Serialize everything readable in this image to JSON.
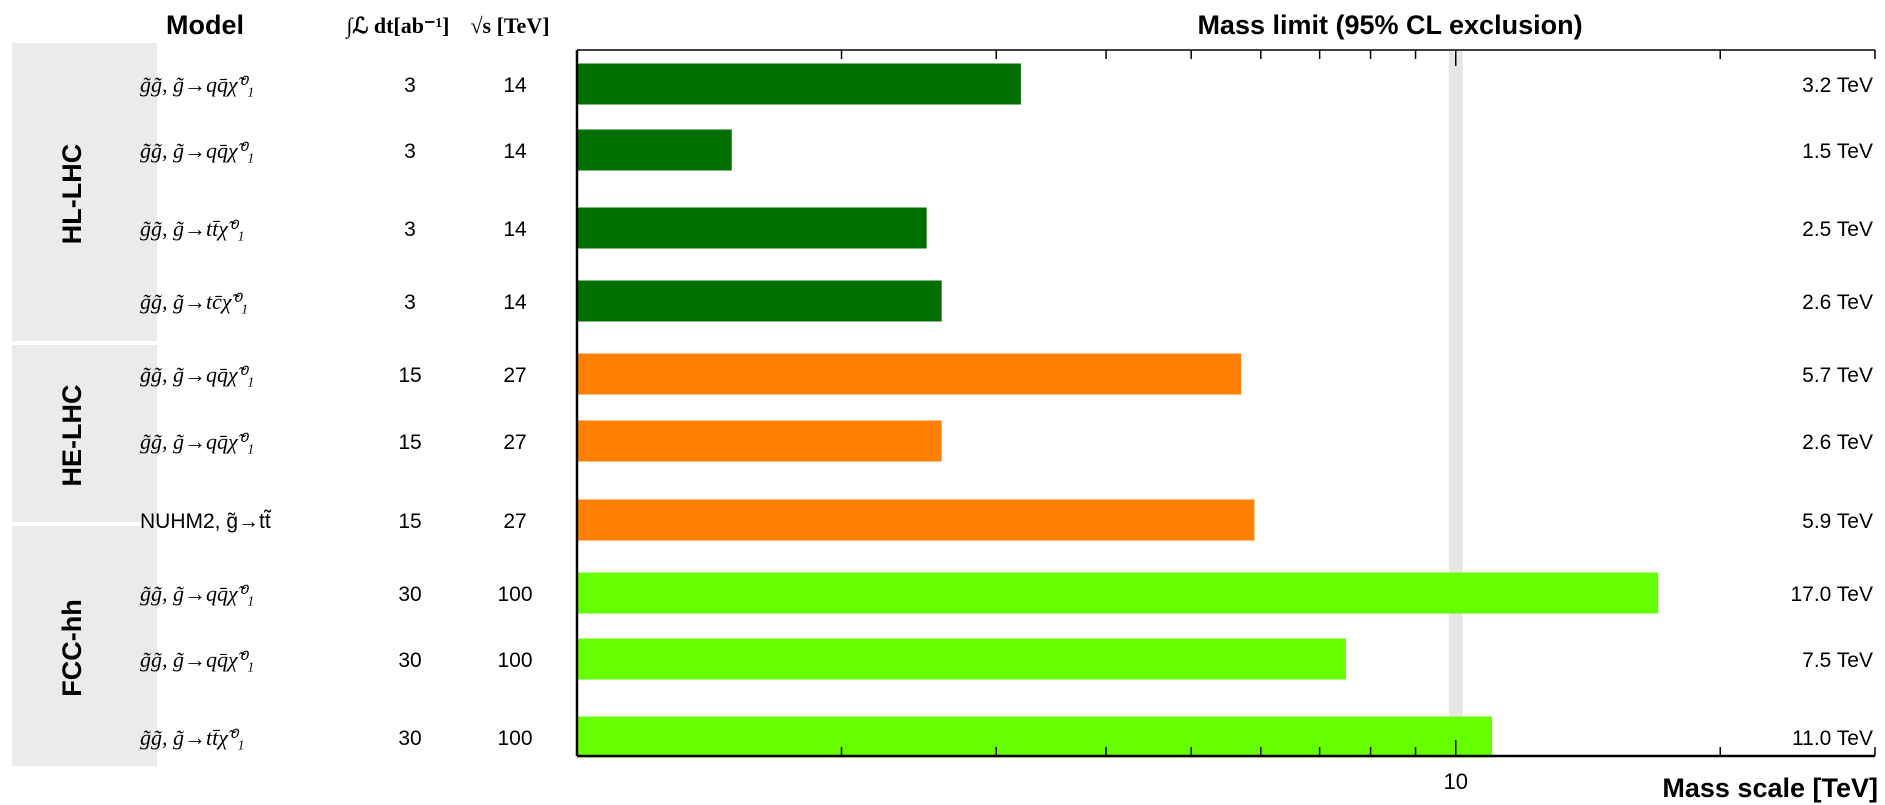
{
  "header": {
    "model": "Model",
    "lumi": "∫ℒ dt[ab⁻¹]",
    "sqrts": "√s [TeV]",
    "title": "Mass limit (95% CL exclusion)"
  },
  "groups": [
    {
      "label": "HL-LHC",
      "color": "#006f00"
    },
    {
      "label": "HE-LHC",
      "color": "#ff7f00"
    },
    {
      "label": "FCC-hh",
      "color": "#66ff00"
    }
  ],
  "colors": {
    "hl_lhc": "#006f00",
    "he_lhc": "#ff7f00",
    "fcc_hh": "#66ff00",
    "group_band": "#ebebeb",
    "ref_band": "#e6e6e6"
  },
  "chart_data": {
    "type": "bar",
    "orientation": "horizontal",
    "title": "Mass limit (95% CL exclusion)",
    "xlabel": "Mass scale [TeV]",
    "xscale": "log",
    "xlim": [
      1,
      30
    ],
    "xticklabels": [
      "10"
    ],
    "reference_band": 10,
    "rows": [
      {
        "group": "HL-LHC",
        "model": "g̃g̃, g̃→qq̄χ̃⁰₁",
        "lumi": "3",
        "sqrts": "14",
        "value": 3.2,
        "label": "3.2 TeV"
      },
      {
        "group": "HL-LHC",
        "model": "g̃g̃, g̃→qq̄χ̃⁰₁",
        "lumi": "3",
        "sqrts": "14",
        "value": 1.5,
        "label": "1.5 TeV"
      },
      {
        "group": "HL-LHC",
        "model": "g̃g̃, g̃→tt̄χ̃⁰₁",
        "lumi": "3",
        "sqrts": "14",
        "value": 2.5,
        "label": "2.5 TeV"
      },
      {
        "group": "HL-LHC",
        "model": "g̃g̃, g̃→tc̄χ̃⁰₁",
        "lumi": "3",
        "sqrts": "14",
        "value": 2.6,
        "label": "2.6 TeV"
      },
      {
        "group": "HE-LHC",
        "model": "g̃g̃, g̃→qq̄χ̃⁰₁",
        "lumi": "15",
        "sqrts": "27",
        "value": 5.7,
        "label": "5.7 TeV"
      },
      {
        "group": "HE-LHC",
        "model": "g̃g̃, g̃→qq̄χ̃⁰₁",
        "lumi": "15",
        "sqrts": "27",
        "value": 2.6,
        "label": "2.6 TeV"
      },
      {
        "group": "HE-LHC",
        "model": "NUHM2, g̃→tt̃",
        "lumi": "15",
        "sqrts": "27",
        "value": 5.9,
        "label": "5.9 TeV"
      },
      {
        "group": "FCC-hh",
        "model": "g̃g̃, g̃→qq̄χ̃⁰₁",
        "lumi": "30",
        "sqrts": "100",
        "value": 17.0,
        "label": "17.0 TeV"
      },
      {
        "group": "FCC-hh",
        "model": "g̃g̃, g̃→qq̄χ̃⁰₁",
        "lumi": "30",
        "sqrts": "100",
        "value": 7.5,
        "label": "7.5 TeV"
      },
      {
        "group": "FCC-hh",
        "model": "g̃g̃, g̃→tt̄χ̃⁰₁",
        "lumi": "30",
        "sqrts": "100",
        "value": 11.0,
        "label": "11.0 TeV"
      }
    ]
  }
}
